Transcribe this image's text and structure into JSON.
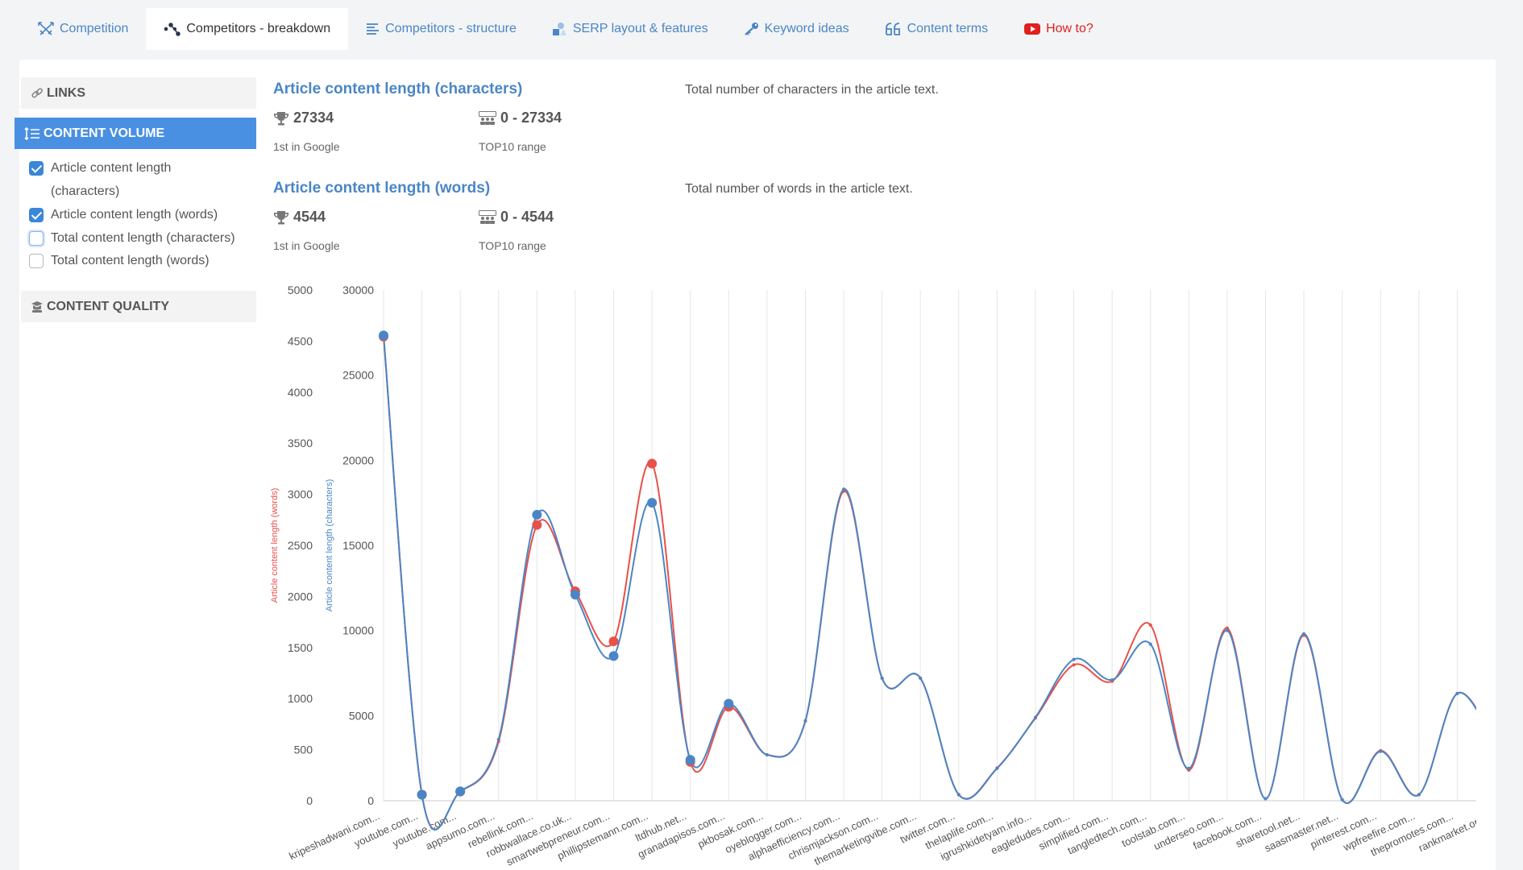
{
  "tabs": {
    "competition": "Competition",
    "breakdown": "Competitors - breakdown",
    "structure": "Competitors - structure",
    "serp": "SERP layout & features",
    "keywords": "Keyword ideas",
    "terms": "Content terms",
    "howto": "How to?"
  },
  "sidebar": {
    "links": "LINKS",
    "content_volume": "CONTENT VOLUME",
    "content_quality": "CONTENT QUALITY",
    "items": [
      {
        "label_1": "Article content length",
        "label_2": "(characters)",
        "checked": true
      },
      {
        "label": "Article content length (words)",
        "checked": true
      },
      {
        "label": "Total content length (characters)",
        "checked": false
      },
      {
        "label": "Total content length (words)",
        "checked": false
      }
    ]
  },
  "metrics": [
    {
      "title": "Article content length (characters)",
      "description": "Total number of characters in the article text.",
      "first_value": "27334",
      "first_label": "1st in Google",
      "range_value": "0 - 27334",
      "range_label": "TOP10 range"
    },
    {
      "title": "Article content length (words)",
      "description": "Total number of words in the article text.",
      "first_value": "4544",
      "first_label": "1st in Google",
      "range_value": "0 - 4544",
      "range_label": "TOP10 range"
    }
  ],
  "chart_data": {
    "type": "line",
    "y_left": {
      "label": "Article content length (words)",
      "color": "#e8504a",
      "ticks": [
        0,
        500,
        1000,
        1500,
        2000,
        2500,
        3000,
        3500,
        4000,
        4500,
        5000
      ],
      "range": [
        0,
        5000
      ]
    },
    "y_right": {
      "label": "Article content length (characters)",
      "color": "#4a86c5",
      "ticks": [
        0,
        5000,
        10000,
        15000,
        20000,
        25000,
        30000
      ],
      "range": [
        0,
        30000
      ]
    },
    "categories": [
      "kripeshadwani.com...",
      "youtube.com...",
      "youtube.com...",
      "appsumo.com...",
      "rebellink.com...",
      "robbwallace.co.uk...",
      "smartwebpreneur.com...",
      "phillipstemann.com...",
      "ltdhub.net...",
      "granadapisos.com...",
      "pkbosak.com...",
      "oyeblogger.com...",
      "alphaefficiency.com...",
      "chrismjackson.com...",
      "themarketingvibe.com...",
      "twitter.com...",
      "thelaplife.com...",
      "igrushkidetyam.info...",
      "eagledudes.com...",
      "simplified.com...",
      "tangledtech.com...",
      "toolstab.com...",
      "underseo.com...",
      "facebook.com...",
      "sharetool.net...",
      "saasmaster.net...",
      "pinterest.com...",
      "wpfreefire.com...",
      "thepromotes.com...",
      "rankmarket.org..."
    ],
    "series": [
      {
        "name": "Article content length (words)",
        "color": "#e8504a",
        "values": [
          4544,
          60,
          90,
          580,
          2700,
          2050,
          1560,
          3300,
          380,
          920,
          450,
          780,
          3030,
          1200,
          1200,
          60,
          320,
          810,
          1330,
          1170,
          1720,
          300,
          1690,
          20,
          1620,
          10,
          490,
          60,
          1050,
          550
        ],
        "markers": [
          0,
          1,
          2,
          4,
          5,
          6,
          7,
          8,
          9
        ]
      },
      {
        "name": "Article content length (characters)",
        "color": "#4a86c5",
        "values": [
          27334,
          350,
          550,
          3600,
          16800,
          12100,
          8500,
          17500,
          2400,
          5700,
          2700,
          4700,
          18300,
          7200,
          7200,
          350,
          1900,
          4900,
          8300,
          7100,
          9200,
          1900,
          10000,
          120,
          9800,
          60,
          2900,
          350,
          6300,
          3200
        ],
        "markers": [
          0,
          1,
          2,
          4,
          5,
          6,
          7,
          8,
          9
        ]
      }
    ]
  }
}
